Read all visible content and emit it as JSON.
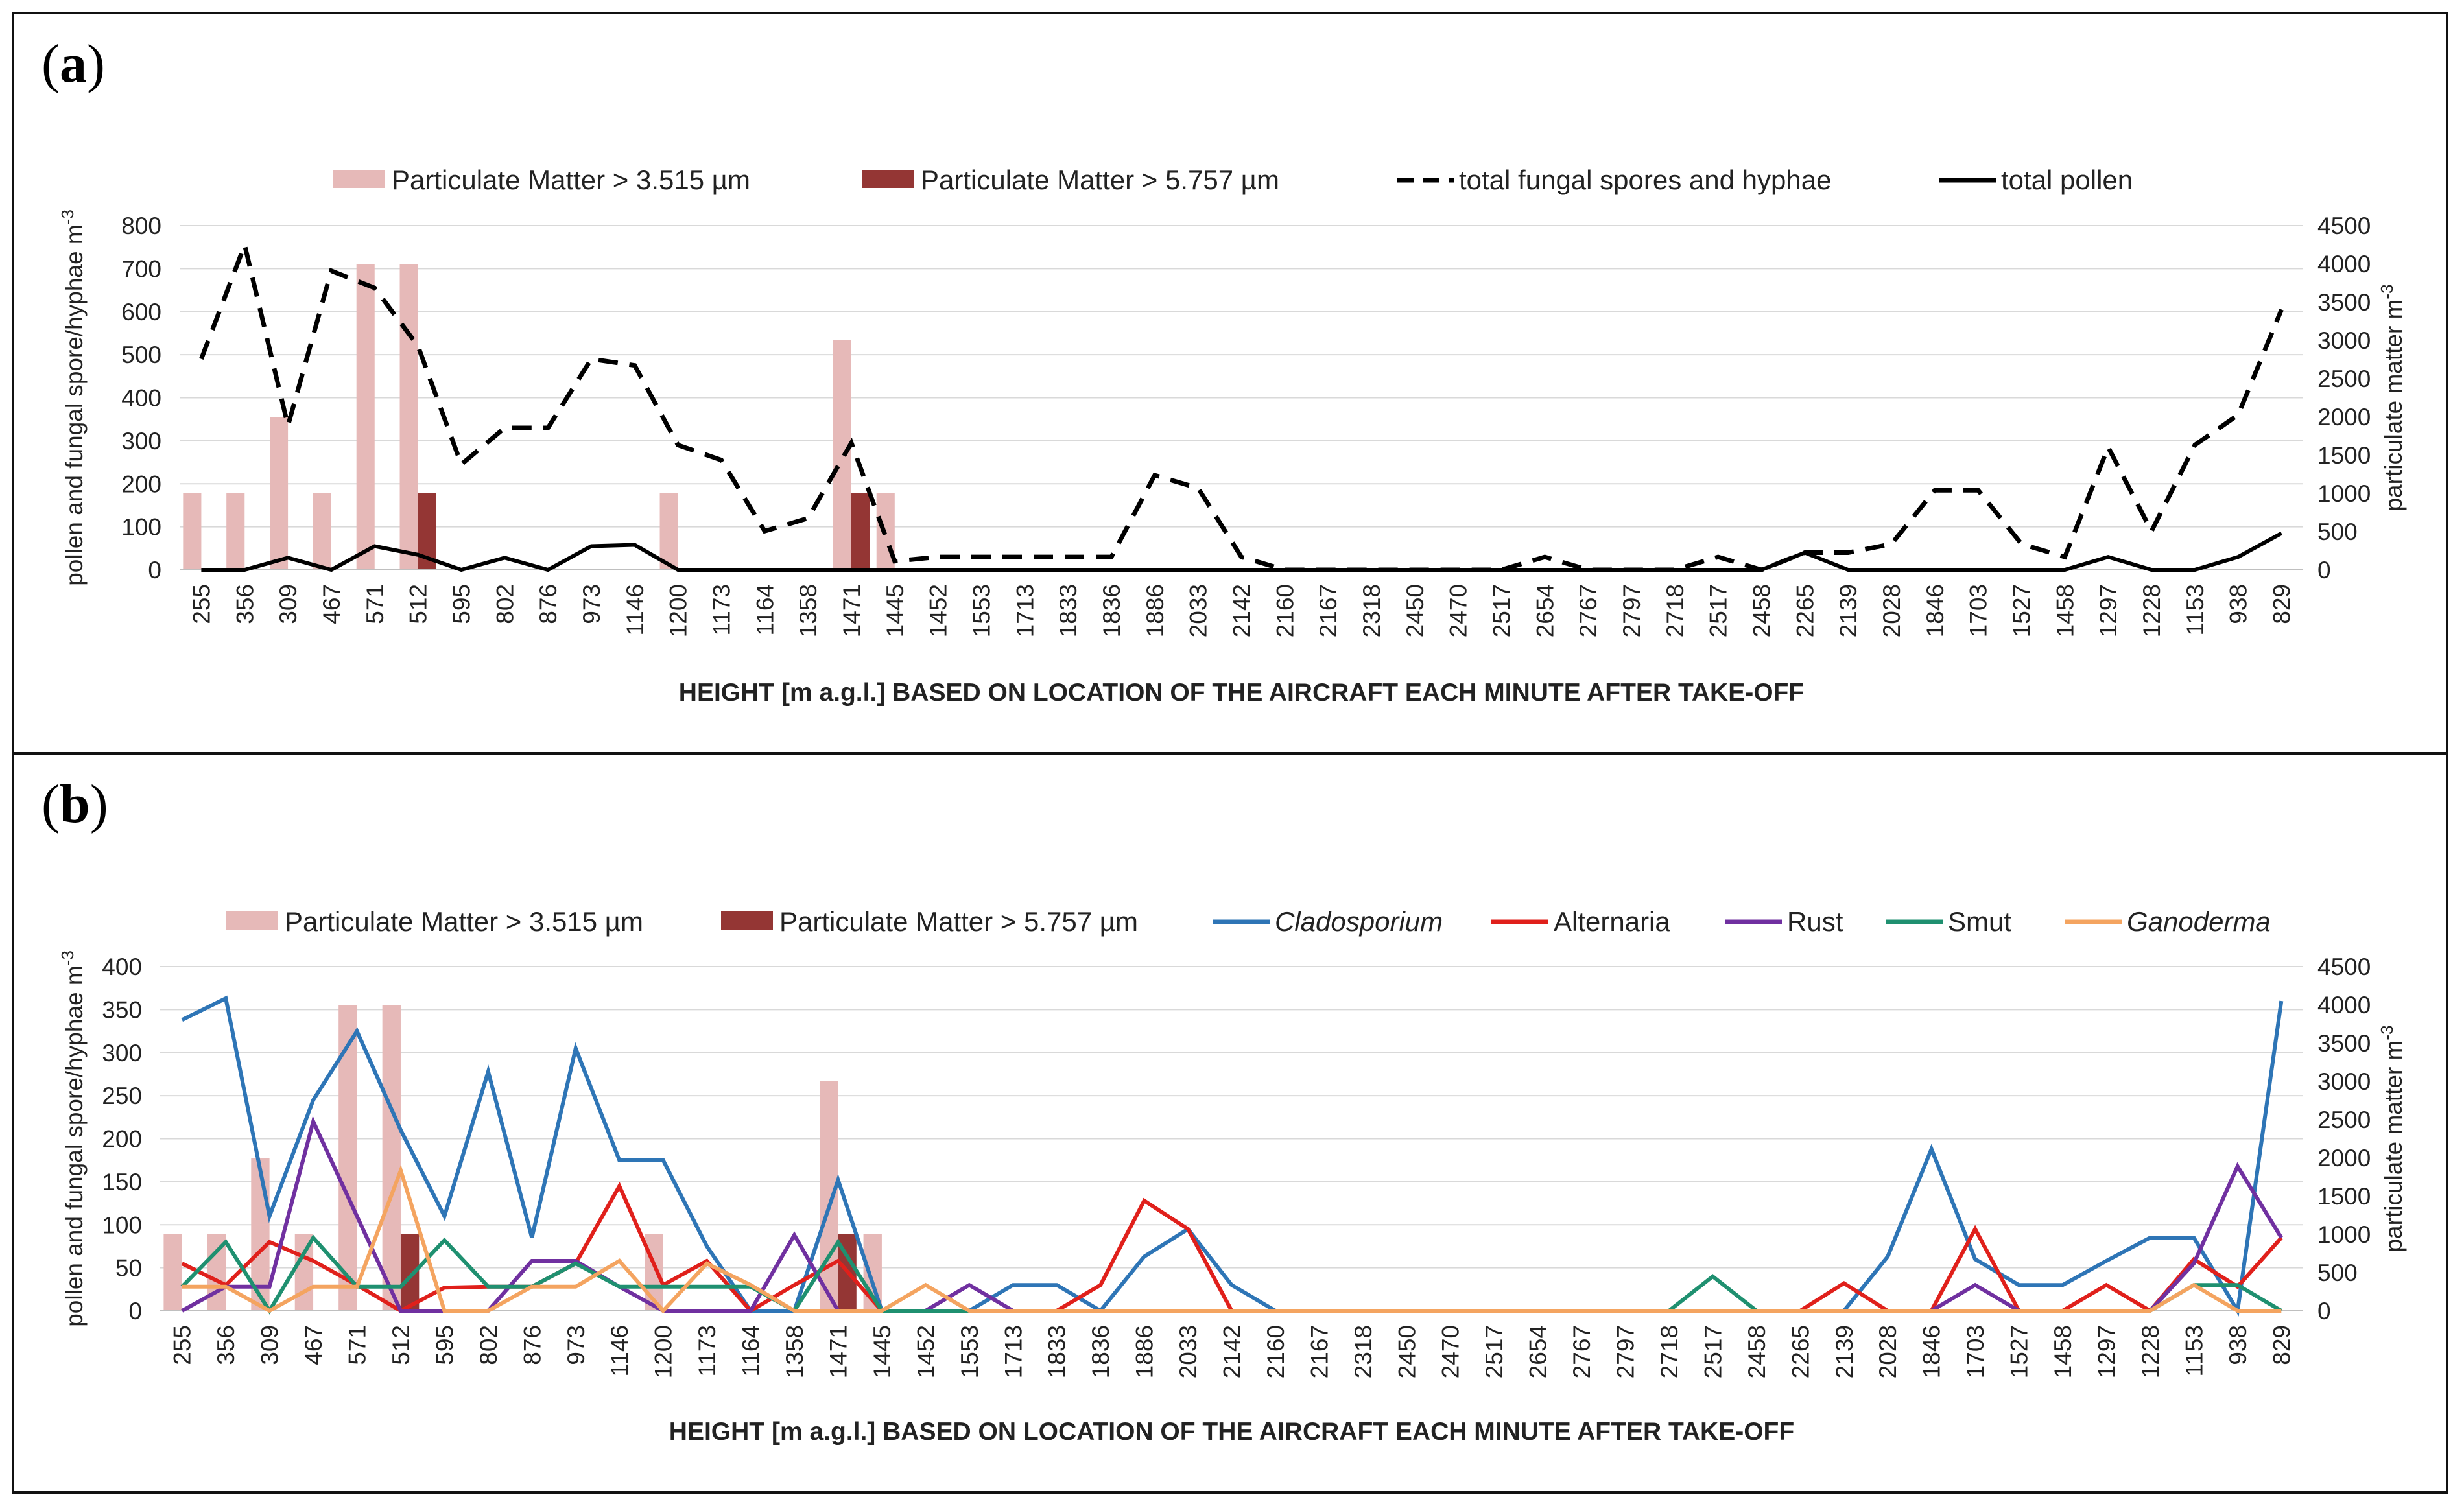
{
  "chart_data": [
    {
      "panel_label": "a",
      "type": "bar+line",
      "xlabel": "HEIGHT [m a.g.l.] BASED ON LOCATION OF THE AIRCRAFT EACH MINUTE AFTER TAKE-OFF",
      "ylabel_left": "pollen and fungal spore/hyphae m",
      "ylabel_left_sup": "-3",
      "ylabel_right": "particulate matter m",
      "ylabel_right_sup": "-3",
      "ylim_left": [
        0,
        800
      ],
      "yticks_left": [
        "0",
        "100",
        "200",
        "300",
        "400",
        "500",
        "600",
        "700",
        "800"
      ],
      "ylim_right": [
        0,
        4500
      ],
      "yticks_right": [
        "0",
        "500",
        "1000",
        "1500",
        "2000",
        "2500",
        "3000",
        "3500",
        "4000",
        "4500"
      ],
      "categories": [
        "255",
        "356",
        "309",
        "467",
        "571",
        "512",
        "595",
        "802",
        "876",
        "973",
        "1146",
        "1200",
        "1173",
        "1164",
        "1358",
        "1471",
        "1445",
        "1452",
        "1553",
        "1713",
        "1833",
        "1836",
        "1886",
        "2033",
        "2142",
        "2160",
        "2167",
        "2318",
        "2450",
        "2470",
        "2517",
        "2654",
        "2767",
        "2797",
        "2718",
        "2517",
        "2458",
        "2265",
        "2139",
        "2028",
        "1846",
        "1703",
        "1527",
        "1458",
        "1297",
        "1228",
        "1153",
        "938",
        "829"
      ],
      "bars": [
        {
          "name": "Particulate Matter > 3.515 µm",
          "color": "#e6b9b8",
          "axis": "right",
          "values": [
            1000,
            1000,
            2000,
            1000,
            4000,
            4000,
            0,
            0,
            0,
            0,
            0,
            1000,
            0,
            0,
            0,
            3000,
            1000,
            0,
            0,
            0,
            0,
            0,
            0,
            0,
            0,
            0,
            0,
            0,
            0,
            0,
            0,
            0,
            0,
            0,
            0,
            0,
            0,
            0,
            0,
            0,
            0,
            0,
            0,
            0,
            0,
            0,
            0,
            0,
            0
          ]
        },
        {
          "name": "Particulate Matter > 5.757 µm",
          "color": "#943634",
          "axis": "right",
          "values": [
            0,
            0,
            0,
            0,
            0,
            1000,
            0,
            0,
            0,
            0,
            0,
            0,
            0,
            0,
            0,
            1000,
            0,
            0,
            0,
            0,
            0,
            0,
            0,
            0,
            0,
            0,
            0,
            0,
            0,
            0,
            0,
            0,
            0,
            0,
            0,
            0,
            0,
            0,
            0,
            0,
            0,
            0,
            0,
            0,
            0,
            0,
            0,
            0,
            0
          ]
        }
      ],
      "series": [
        {
          "name": "total fungal spores and hyphae",
          "color": "#000000",
          "dash": true,
          "italic": false,
          "axis": "left",
          "values": [
            490,
            755,
            335,
            695,
            655,
            520,
            245,
            330,
            330,
            490,
            475,
            290,
            255,
            90,
            120,
            295,
            20,
            30,
            30,
            30,
            30,
            30,
            220,
            190,
            30,
            0,
            0,
            0,
            0,
            0,
            0,
            30,
            0,
            0,
            0,
            30,
            0,
            40,
            40,
            60,
            185,
            185,
            60,
            30,
            285,
            90,
            290,
            360,
            605
          ]
        },
        {
          "name": "total pollen",
          "color": "#000000",
          "dash": false,
          "italic": false,
          "axis": "left",
          "values": [
            0,
            0,
            28,
            0,
            55,
            35,
            0,
            28,
            0,
            55,
            58,
            0,
            0,
            0,
            0,
            0,
            0,
            0,
            0,
            0,
            0,
            0,
            0,
            0,
            0,
            0,
            0,
            0,
            0,
            0,
            0,
            0,
            0,
            0,
            0,
            0,
            0,
            40,
            0,
            0,
            0,
            0,
            0,
            0,
            30,
            0,
            0,
            30,
            85
          ]
        }
      ]
    },
    {
      "panel_label": "b",
      "type": "bar+line",
      "xlabel": "HEIGHT [m a.g.l.] BASED ON LOCATION OF THE AIRCRAFT EACH MINUTE AFTER TAKE-OFF",
      "ylabel_left": "pollen and fungal spore/hyphae m",
      "ylabel_left_sup": "-3",
      "ylabel_right": "particulate matter m",
      "ylabel_right_sup": "-3",
      "ylim_left": [
        0,
        400
      ],
      "yticks_left": [
        "0",
        "50",
        "100",
        "150",
        "200",
        "250",
        "300",
        "350",
        "400"
      ],
      "ylim_right": [
        0,
        4500
      ],
      "yticks_right": [
        "0",
        "500",
        "1000",
        "1500",
        "2000",
        "2500",
        "3000",
        "3500",
        "4000",
        "4500"
      ],
      "categories": [
        "255",
        "356",
        "309",
        "467",
        "571",
        "512",
        "595",
        "802",
        "876",
        "973",
        "1146",
        "1200",
        "1173",
        "1164",
        "1358",
        "1471",
        "1445",
        "1452",
        "1553",
        "1713",
        "1833",
        "1836",
        "1886",
        "2033",
        "2142",
        "2160",
        "2167",
        "2318",
        "2450",
        "2470",
        "2517",
        "2654",
        "2767",
        "2797",
        "2718",
        "2517",
        "2458",
        "2265",
        "2139",
        "2028",
        "1846",
        "1703",
        "1527",
        "1458",
        "1297",
        "1228",
        "1153",
        "938",
        "829"
      ],
      "bars": [
        {
          "name": "Particulate Matter > 3.515 µm",
          "color": "#e6b9b8",
          "axis": "right",
          "values": [
            1000,
            1000,
            2000,
            1000,
            4000,
            4000,
            0,
            0,
            0,
            0,
            0,
            1000,
            0,
            0,
            0,
            3000,
            1000,
            0,
            0,
            0,
            0,
            0,
            0,
            0,
            0,
            0,
            0,
            0,
            0,
            0,
            0,
            0,
            0,
            0,
            0,
            0,
            0,
            0,
            0,
            0,
            0,
            0,
            0,
            0,
            0,
            0,
            0,
            0,
            0
          ]
        },
        {
          "name": "Particulate Matter > 5.757 µm",
          "color": "#943634",
          "axis": "right",
          "values": [
            0,
            0,
            0,
            0,
            0,
            1000,
            0,
            0,
            0,
            0,
            0,
            0,
            0,
            0,
            0,
            1000,
            0,
            0,
            0,
            0,
            0,
            0,
            0,
            0,
            0,
            0,
            0,
            0,
            0,
            0,
            0,
            0,
            0,
            0,
            0,
            0,
            0,
            0,
            0,
            0,
            0,
            0,
            0,
            0,
            0,
            0,
            0,
            0,
            0
          ]
        }
      ],
      "series": [
        {
          "name": "Cladosporium",
          "color": "#2e75b6",
          "dash": false,
          "italic": true,
          "axis": "left",
          "values": [
            338,
            363,
            110,
            245,
            325,
            210,
            110,
            278,
            85,
            305,
            175,
            175,
            75,
            0,
            0,
            152,
            0,
            0,
            0,
            30,
            30,
            0,
            63,
            95,
            30,
            0,
            0,
            0,
            0,
            0,
            0,
            0,
            0,
            0,
            0,
            0,
            0,
            0,
            0,
            63,
            188,
            60,
            30,
            30,
            58,
            85,
            85,
            0,
            360
          ]
        },
        {
          "name": "Alternaria",
          "color": "#e0201b",
          "dash": false,
          "italic": false,
          "axis": "left",
          "values": [
            55,
            30,
            80,
            58,
            30,
            0,
            27,
            28,
            28,
            55,
            145,
            30,
            58,
            0,
            30,
            58,
            0,
            0,
            0,
            0,
            0,
            30,
            128,
            95,
            0,
            0,
            0,
            0,
            0,
            0,
            0,
            0,
            0,
            0,
            0,
            0,
            0,
            0,
            32,
            0,
            0,
            95,
            0,
            0,
            30,
            0,
            60,
            28,
            85
          ]
        },
        {
          "name": "Rust",
          "color": "#7030a0",
          "dash": false,
          "italic": false,
          "axis": "left",
          "values": [
            0,
            28,
            28,
            220,
            110,
            0,
            0,
            0,
            58,
            58,
            28,
            0,
            0,
            0,
            88,
            0,
            0,
            0,
            30,
            0,
            0,
            0,
            0,
            0,
            0,
            0,
            0,
            0,
            0,
            0,
            0,
            0,
            0,
            0,
            0,
            0,
            0,
            0,
            0,
            0,
            0,
            30,
            0,
            0,
            0,
            0,
            55,
            168,
            85
          ]
        },
        {
          "name": "Smut",
          "color": "#1f9070",
          "dash": false,
          "italic": false,
          "axis": "left",
          "values": [
            28,
            80,
            0,
            85,
            28,
            28,
            82,
            28,
            28,
            55,
            28,
            28,
            28,
            28,
            0,
            80,
            0,
            0,
            0,
            0,
            0,
            0,
            0,
            0,
            0,
            0,
            0,
            0,
            0,
            0,
            0,
            0,
            0,
            0,
            0,
            40,
            0,
            0,
            0,
            0,
            0,
            0,
            0,
            0,
            0,
            0,
            30,
            30,
            0
          ]
        },
        {
          "name": "Ganoderma",
          "color": "#f4a460",
          "dash": false,
          "italic": true,
          "axis": "left",
          "values": [
            28,
            28,
            0,
            28,
            28,
            163,
            0,
            0,
            28,
            28,
            58,
            0,
            55,
            30,
            0,
            0,
            0,
            30,
            0,
            0,
            0,
            0,
            0,
            0,
            0,
            0,
            0,
            0,
            0,
            0,
            0,
            0,
            0,
            0,
            0,
            0,
            0,
            0,
            0,
            0,
            0,
            0,
            0,
            0,
            0,
            0,
            30,
            0,
            0
          ]
        }
      ]
    }
  ]
}
